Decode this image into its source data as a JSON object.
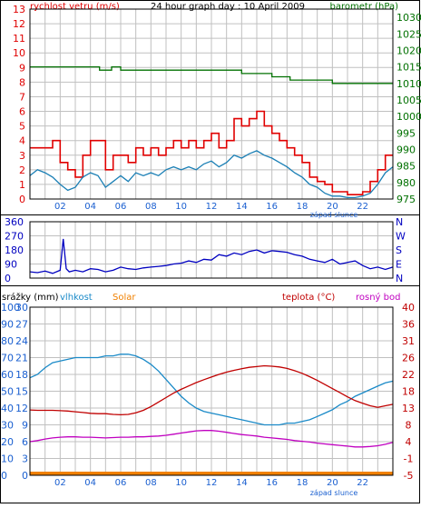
{
  "title": "24 hour graph day : 10 April 2009",
  "sunset_label": "západ slunce",
  "time_ticks": [
    "02",
    "04",
    "06",
    "08",
    "10",
    "12",
    "14",
    "16",
    "18",
    "20",
    "22"
  ],
  "colors": {
    "wind": "#e00000",
    "wind_avg": "#1a7fb5",
    "barometer": "#007000",
    "direction": "#0000c0",
    "humidity": "#1a8ac8",
    "temperature": "#c00000",
    "dewpoint": "#c000c0",
    "solar": "#f08000",
    "grid": "#c0c0c0",
    "axis_blue": "#1a5fd0"
  },
  "chart_data": [
    {
      "type": "line",
      "name": "wind_pressure",
      "left_label": "rychlost vetru (m/s)",
      "right_label": "barometr (hPa)",
      "left_ticks": [
        0,
        1,
        2,
        3,
        4,
        5,
        6,
        7,
        8,
        9,
        10,
        11,
        12,
        13
      ],
      "right_ticks": [
        975,
        980,
        985,
        990,
        995,
        1000,
        1005,
        1010,
        1015,
        1020,
        1025,
        1030
      ],
      "ylim": [
        0,
        13
      ],
      "y2lim": [
        975,
        1032.5
      ],
      "series": [
        {
          "name": "gust",
          "x": [
            0,
            0.5,
            1,
            1.5,
            2,
            2.5,
            3,
            3.5,
            4,
            4.5,
            5,
            5.5,
            6,
            6.5,
            7,
            7.5,
            8,
            8.5,
            9,
            9.5,
            10,
            10.5,
            11,
            11.5,
            12,
            12.5,
            13,
            13.5,
            14,
            14.5,
            15,
            15.5,
            16,
            16.5,
            17,
            17.5,
            18,
            18.5,
            19,
            19.5,
            20,
            20.5,
            21,
            21.5,
            22,
            22.5,
            23,
            23.5,
            24
          ],
          "values": [
            3.5,
            3.5,
            3.5,
            4,
            2.5,
            2,
            1.5,
            3,
            4,
            4,
            2,
            3,
            3,
            2.5,
            3.5,
            3,
            3.5,
            3,
            3.5,
            4,
            3.5,
            4,
            3.5,
            4,
            4.5,
            3.5,
            4,
            5.5,
            5,
            5.5,
            6,
            5,
            4.5,
            4,
            3.5,
            3,
            2.5,
            1.5,
            1.2,
            1,
            0.5,
            0.5,
            0.3,
            0.3,
            0.5,
            1.2,
            2,
            3,
            3
          ]
        },
        {
          "name": "average",
          "x": [
            0,
            0.5,
            1,
            1.5,
            2,
            2.5,
            3,
            3.5,
            4,
            4.5,
            5,
            5.5,
            6,
            6.5,
            7,
            7.5,
            8,
            8.5,
            9,
            9.5,
            10,
            10.5,
            11,
            11.5,
            12,
            12.5,
            13,
            13.5,
            14,
            14.5,
            15,
            15.5,
            16,
            16.5,
            17,
            17.5,
            18,
            18.5,
            19,
            19.5,
            20,
            20.5,
            21,
            21.5,
            22,
            22.5,
            23,
            23.5,
            24
          ],
          "values": [
            1.6,
            2,
            1.8,
            1.5,
            1,
            0.6,
            0.8,
            1.5,
            1.8,
            1.6,
            0.8,
            1.2,
            1.6,
            1.2,
            1.8,
            1.6,
            1.8,
            1.6,
            2,
            2.2,
            2,
            2.2,
            2,
            2.4,
            2.6,
            2.2,
            2.5,
            3,
            2.8,
            3.1,
            3.3,
            3,
            2.8,
            2.5,
            2.2,
            1.8,
            1.5,
            1,
            0.8,
            0.4,
            0.2,
            0.2,
            0.1,
            0.1,
            0.2,
            0.4,
            1,
            1.8,
            2.2
          ]
        },
        {
          "name": "barometer",
          "axis": "right",
          "x": [
            0,
            4,
            4.6,
            5,
            5.4,
            6,
            9,
            11,
            12,
            13,
            14,
            15,
            16,
            17,
            17.2,
            18,
            20,
            22,
            24
          ],
          "values": [
            1015,
            1015,
            1014,
            1014,
            1015,
            1014,
            1014,
            1014,
            1014,
            1014,
            1013,
            1013,
            1012,
            1012,
            1011,
            1011,
            1010,
            1010,
            1010
          ]
        }
      ]
    },
    {
      "type": "line",
      "name": "wind_direction",
      "left_ticks": [
        0,
        90,
        180,
        270,
        360
      ],
      "right_ticks": [
        "N",
        "E",
        "S",
        "W",
        "N"
      ],
      "ylim": [
        0,
        360
      ],
      "series": [
        {
          "name": "direction",
          "x": [
            0,
            0.5,
            1,
            1.5,
            2,
            2.2,
            2.4,
            2.6,
            3,
            3.5,
            4,
            4.5,
            5,
            5.5,
            6,
            6.5,
            7,
            7.5,
            8,
            8.5,
            9,
            9.5,
            10,
            10.5,
            11,
            11.5,
            12,
            12.5,
            13,
            13.5,
            14,
            14.5,
            15,
            15.5,
            16,
            16.5,
            17,
            17.5,
            18,
            18.5,
            19,
            19.5,
            20,
            20.5,
            21,
            21.5,
            22,
            22.5,
            23,
            23.5,
            24
          ],
          "values": [
            40,
            35,
            45,
            30,
            50,
            250,
            60,
            40,
            50,
            40,
            60,
            55,
            40,
            50,
            70,
            60,
            55,
            65,
            70,
            75,
            80,
            90,
            95,
            110,
            100,
            120,
            115,
            150,
            140,
            160,
            150,
            170,
            180,
            160,
            175,
            170,
            165,
            150,
            140,
            120,
            110,
            100,
            120,
            90,
            100,
            110,
            80,
            60,
            70,
            55,
            70
          ]
        }
      ]
    },
    {
      "type": "line",
      "name": "climate",
      "left_labels": [
        "srážky (mm)",
        "vlhkost",
        "Solar"
      ],
      "right_labels": [
        "teplota (°C)",
        "rosný bod"
      ],
      "left_ticks_percent": [
        0,
        10,
        20,
        30,
        40,
        50,
        60,
        70,
        80,
        90,
        100
      ],
      "left_ticks_rain": [
        0,
        3,
        6,
        9,
        12,
        15,
        18,
        21,
        24,
        27,
        30
      ],
      "right_ticks": [
        -5,
        -1,
        4,
        8,
        13,
        18,
        22,
        26,
        31,
        36,
        40
      ],
      "ylim": [
        0,
        100
      ],
      "y2lim": [
        -5,
        40
      ],
      "series": [
        {
          "name": "humidity",
          "x": [
            0,
            0.5,
            1,
            1.5,
            2,
            2.5,
            3,
            3.5,
            4,
            4.5,
            5,
            5.5,
            6,
            6.5,
            7,
            7.5,
            8,
            8.5,
            9,
            9.5,
            10,
            10.5,
            11,
            11.5,
            12,
            12.5,
            13,
            13.5,
            14,
            14.5,
            15,
            15.5,
            16,
            16.5,
            17,
            17.5,
            18,
            18.5,
            19,
            19.5,
            20,
            20.5,
            21,
            21.5,
            22,
            22.5,
            23,
            23.5,
            24
          ],
          "values": [
            58,
            60,
            64,
            67,
            68,
            69,
            70,
            70,
            70,
            70,
            71,
            71,
            72,
            72,
            71,
            69,
            66,
            62,
            57,
            52,
            47,
            43,
            40,
            38,
            37,
            36,
            35,
            34,
            33,
            32,
            31,
            30,
            30,
            30,
            31,
            31,
            32,
            33,
            35,
            37,
            39,
            42,
            44,
            47,
            49,
            51,
            53,
            55,
            56
          ]
        },
        {
          "name": "temperature",
          "x": [
            0,
            0.5,
            1,
            1.5,
            2,
            2.5,
            3,
            3.5,
            4,
            4.5,
            5,
            5.5,
            6,
            6.5,
            7,
            7.5,
            8,
            8.5,
            9,
            9.5,
            10,
            10.5,
            11,
            11.5,
            12,
            12.5,
            13,
            13.5,
            14,
            14.5,
            15,
            15.5,
            16,
            16.5,
            17,
            17.5,
            18,
            18.5,
            19,
            19.5,
            20,
            20.5,
            21,
            21.5,
            22,
            22.5,
            23,
            23.5,
            24
          ],
          "values": [
            12.5,
            12.4,
            12.4,
            12.4,
            12.3,
            12.2,
            12.0,
            11.8,
            11.6,
            11.5,
            11.5,
            11.3,
            11.2,
            11.3,
            11.7,
            12.4,
            13.4,
            14.6,
            15.8,
            17.0,
            18.0,
            18.9,
            19.8,
            20.6,
            21.3,
            22.0,
            22.6,
            23.1,
            23.5,
            23.9,
            24.1,
            24.3,
            24.2,
            24.0,
            23.6,
            23.0,
            22.3,
            21.4,
            20.4,
            19.3,
            18.2,
            17.1,
            16.0,
            15.0,
            14.3,
            13.6,
            13.2,
            13.6,
            14.0
          ]
        },
        {
          "name": "dewpoint",
          "x": [
            0,
            0.5,
            1,
            1.5,
            2,
            2.5,
            3,
            3.5,
            4,
            4.5,
            5,
            5.5,
            6,
            6.5,
            7,
            7.5,
            8,
            8.5,
            9,
            9.5,
            10,
            10.5,
            11,
            11.5,
            12,
            12.5,
            13,
            13.5,
            14,
            14.5,
            15,
            15.5,
            16,
            16.5,
            17,
            17.5,
            18,
            18.5,
            19,
            19.5,
            20,
            20.5,
            21,
            21.5,
            22,
            22.5,
            23,
            23.5,
            24
          ],
          "values": [
            4.0,
            4.3,
            4.7,
            5.0,
            5.2,
            5.3,
            5.3,
            5.2,
            5.2,
            5.1,
            5.0,
            5.1,
            5.2,
            5.2,
            5.3,
            5.3,
            5.4,
            5.5,
            5.7,
            6.0,
            6.3,
            6.6,
            6.9,
            7.0,
            7.0,
            6.8,
            6.5,
            6.2,
            5.9,
            5.7,
            5.5,
            5.2,
            5.0,
            4.8,
            4.6,
            4.3,
            4.1,
            3.9,
            3.6,
            3.4,
            3.2,
            3.0,
            2.8,
            2.6,
            2.6,
            2.7,
            2.9,
            3.3,
            3.8
          ]
        },
        {
          "name": "solar",
          "x": [
            0,
            24
          ],
          "values": [
            0,
            0
          ]
        }
      ]
    }
  ]
}
